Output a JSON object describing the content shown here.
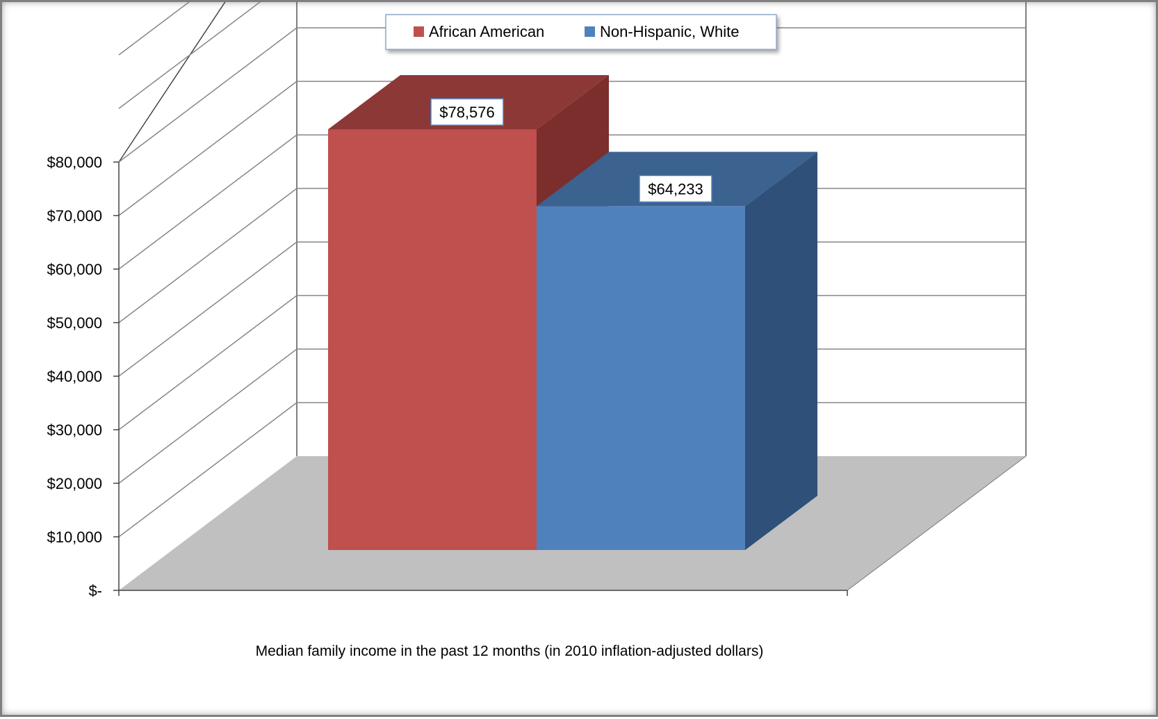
{
  "chart_data": {
    "type": "bar",
    "categories": [
      "Median family income in the past 12 months (in 2010 inflation-adjusted dollars)"
    ],
    "series": [
      {
        "name": "African American",
        "values": [
          78576
        ],
        "data_label": "$78,576",
        "color": "#c0504d",
        "top_color": "#8c3836",
        "side_color": "#7b2e2c"
      },
      {
        "name": "Non-Hispanic, White",
        "values": [
          64233
        ],
        "data_label": "$64,233",
        "color": "#4f81bd",
        "top_color": "#3c6290",
        "side_color": "#2f5078"
      }
    ],
    "y_ticks": [
      {
        "value": 0,
        "label": "$-"
      },
      {
        "value": 10000,
        "label": "$10,000"
      },
      {
        "value": 20000,
        "label": "$20,000"
      },
      {
        "value": 30000,
        "label": "$30,000"
      },
      {
        "value": 40000,
        "label": "$40,000"
      },
      {
        "value": 50000,
        "label": "$50,000"
      },
      {
        "value": 60000,
        "label": "$60,000"
      },
      {
        "value": 70000,
        "label": "$70,000"
      },
      {
        "value": 80000,
        "label": "$80,000"
      }
    ],
    "ylim": [
      0,
      80000
    ],
    "grid": true,
    "three_d": true,
    "legend_position": "top",
    "floor_color": "#c0c0c0",
    "gridline_color": "#868686"
  }
}
